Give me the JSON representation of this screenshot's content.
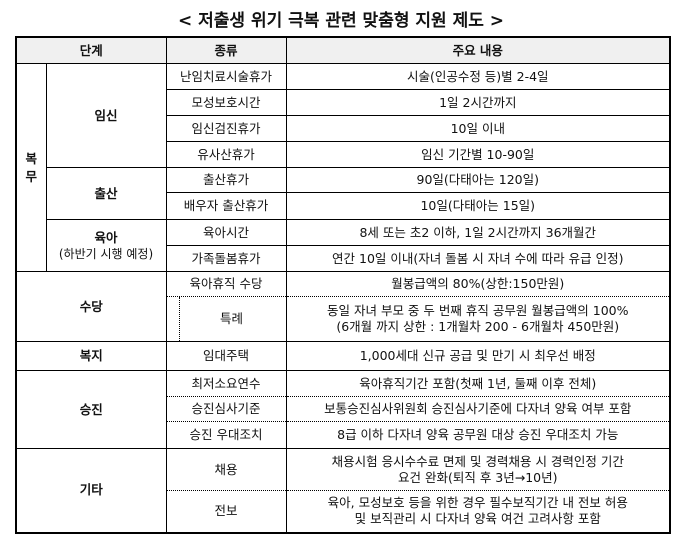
{
  "title": "< 저출생 위기 극복 관련 맞춤형 지원 제도 >",
  "headers": [
    "단계",
    "종류",
    "주요 내용"
  ],
  "bokmu": {
    "label": "복무",
    "groups": [
      {
        "name": "임신",
        "sub": "",
        "rows": [
          {
            "type": "난임치료시술휴가",
            "content": "시술(인공수정 등)별 2-4일"
          },
          {
            "type": "모성보호시간",
            "content": "1일 2시간까지"
          },
          {
            "type": "임신검진휴가",
            "content": "10일 이내"
          },
          {
            "type": "유사산휴가",
            "content": "임신 기간별 10-90일"
          }
        ]
      },
      {
        "name": "출산",
        "sub": "",
        "rows": [
          {
            "type": "출산휴가",
            "content": "90일(다태아는 120일)"
          },
          {
            "type": "배우자 출산휴가",
            "content": "10일(다태아는 15일)"
          }
        ]
      },
      {
        "name": "육아",
        "sub": "(하반기 시행 예정)",
        "rows": [
          {
            "type": "육아시간",
            "content": "8세 또는 초2 이하, 1일 2시간까지 36개월간"
          },
          {
            "type": "가족돌봄휴가",
            "content": "연간 10일 이내(자녀 돌봄 시 자녀 수에 따라 유급 인정)"
          }
        ]
      }
    ]
  },
  "sudang": {
    "label": "수당",
    "rows": [
      {
        "type": "육아휴직 수당",
        "content": [
          "월봉급액의 80%(상한:150만원)"
        ]
      },
      {
        "type": "특례",
        "content": [
          "동일 자녀 부모 중 두 번째 휴직 공무원 월봉급액의 100%",
          "(6개월 까지 상한 : 1개월차 200 - 6개월차 450만원)"
        ]
      }
    ]
  },
  "bokji": {
    "label": "복지",
    "type": "임대주택",
    "content": "1,000세대 신규 공급 및 만기 시 최우선 배정"
  },
  "seungjin": {
    "label": "승진",
    "rows": [
      {
        "type": "최저소요연수",
        "content": "육아휴직기간 포함(첫째 1년, 둘째 이후 전체)"
      },
      {
        "type": "승진심사기준",
        "content": "보통승진심사위원회 승진심사기준에 다자녀 양육 여부 포함"
      },
      {
        "type": "승진 우대조치",
        "content": "8급 이하 다자녀 양육 공무원 대상 승진 우대조치 가능"
      }
    ]
  },
  "gita": {
    "label": "기타",
    "rows": [
      {
        "type": "채용",
        "content": [
          "채용시험 응시수수료 면제 및 경력채용 시 경력인정 기간",
          "요건 완화(퇴직 후 3년→10년)"
        ]
      },
      {
        "type": "전보",
        "content": [
          "육아, 모성보호 등을 위한 경우 필수보직기간 내 전보 허용",
          "및 보직관리 시 다자녀 양육 여건 고려사항 포함"
        ]
      }
    ]
  }
}
